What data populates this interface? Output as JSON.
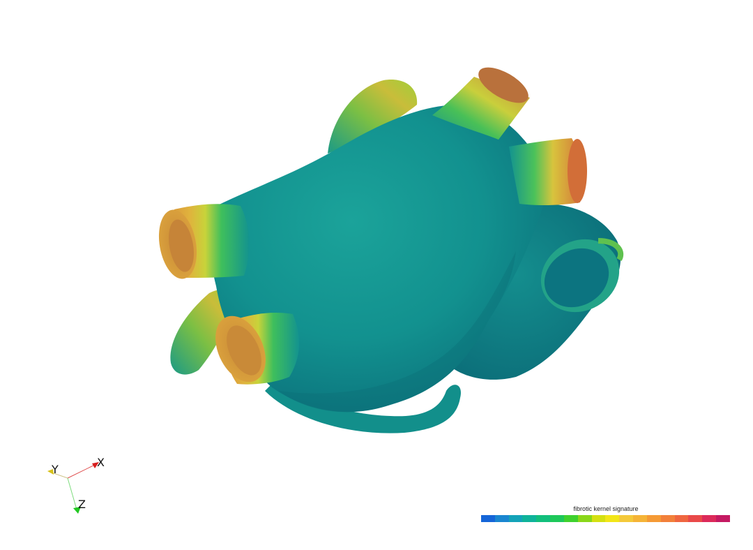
{
  "scalar_bar": {
    "title": "fibrotic kernel signature",
    "colors": [
      "#1565d8",
      "#1a86d0",
      "#14a3b8",
      "#0fb39a",
      "#12bf7c",
      "#1ec85a",
      "#3fd12e",
      "#8ad71a",
      "#d4e012",
      "#f2e618",
      "#f4c93a",
      "#f5b437",
      "#f59a35",
      "#f2803a",
      "#ef6640",
      "#e94949",
      "#dc2a5a",
      "#c41a62"
    ]
  },
  "orientation_axes": {
    "x_label": "X",
    "y_label": "Y",
    "z_label": "Z"
  },
  "colors": {
    "background": "#ffffff",
    "surface_base": "#13908f",
    "surface_shadow": "#0a6f78",
    "surface_high": "#e6a23a"
  }
}
